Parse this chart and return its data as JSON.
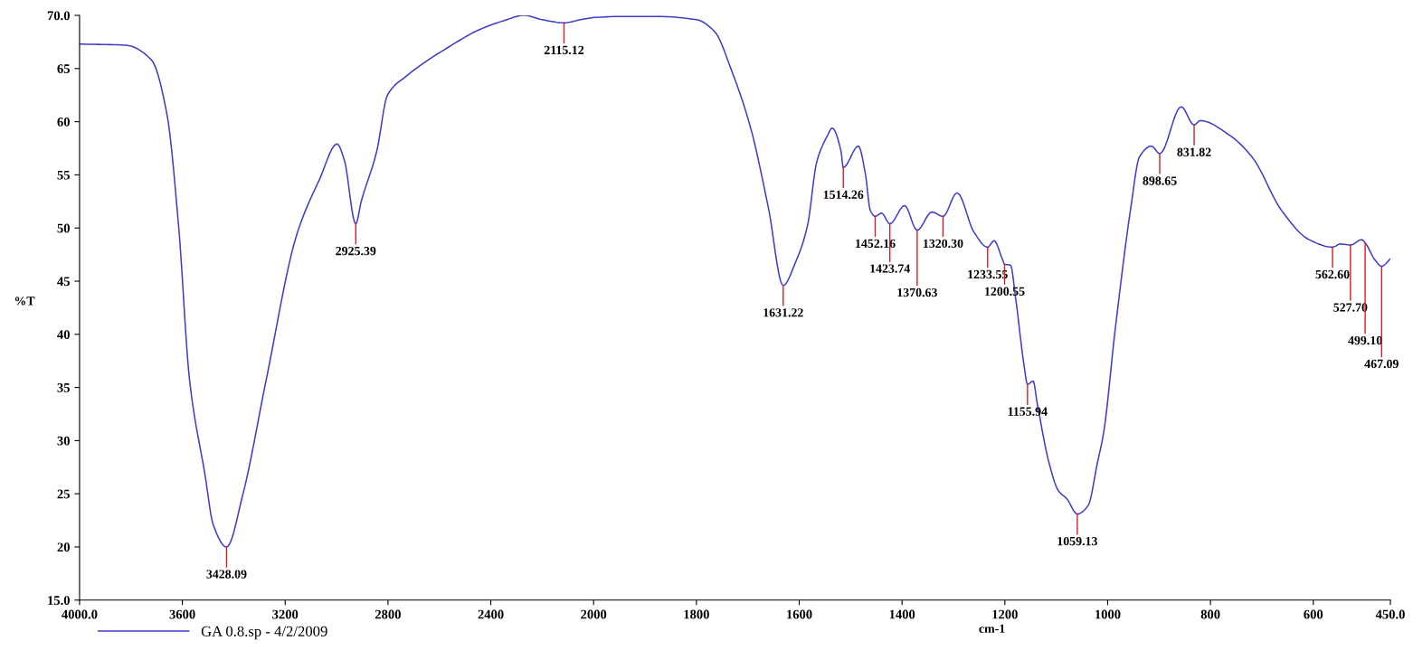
{
  "chart_data": [
    {
      "type": "line",
      "ylabel": "%T",
      "x": [
        4000,
        3822,
        3720,
        3660,
        3614,
        3572,
        3512,
        3480,
        3428.09,
        3364,
        3274,
        3156,
        3066,
        2998,
        2970,
        2925.39,
        2904,
        2844,
        2802,
        2728,
        2552,
        2450,
        2350,
        2270,
        2200,
        2115.12,
        2050,
        2000
      ],
      "series": [
        {
          "name": "GA 0.8.sp - 4/2/2009",
          "color": "#3c3cc8",
          "values": [
            67.3,
            67.2,
            65.8,
            60.7,
            50.0,
            35.7,
            26.8,
            22.1,
            20.0,
            25.0,
            35.7,
            49.3,
            54.6,
            57.9,
            56.4,
            50.4,
            52.5,
            57.2,
            62.5,
            64.3,
            67.2,
            68.6,
            69.5,
            70.0,
            69.6,
            69.3,
            69.6,
            69.8
          ]
        }
      ],
      "xlim": [
        4000,
        2000
      ],
      "xticks": [
        {
          "value": 4000,
          "label": "4000.0"
        },
        3600,
        3200,
        2800,
        2400
      ],
      "ylim": [
        15,
        70
      ],
      "yticks": [
        {
          "value": 15,
          "label": "15.0"
        },
        20,
        25,
        30,
        35,
        40,
        45,
        50,
        55,
        60,
        65,
        {
          "value": 70,
          "label": "70.0"
        }
      ],
      "grid": false,
      "legend": "bottom left",
      "annotations": [
        {
          "text": "3428.09",
          "x": 3428.09,
          "y": 20.0
        },
        {
          "text": "2925.39",
          "x": 2925.39,
          "y": 50.4
        },
        {
          "text": "2115.12",
          "x": 2115.12,
          "y": 69.3
        }
      ]
    },
    {
      "type": "line",
      "xlabel": "cm-1",
      "x": [
        2000,
        1950,
        1880,
        1800,
        1765,
        1730,
        1695,
        1660,
        1631.22,
        1607,
        1584,
        1566,
        1545,
        1536,
        1519,
        1514.26,
        1485,
        1471,
        1462,
        1452.16,
        1440,
        1423.74,
        1395,
        1370.63,
        1342,
        1320.3,
        1293,
        1260,
        1233.55,
        1221,
        1205,
        1200.55,
        1189,
        1179,
        1163,
        1155.94,
        1145,
        1137,
        1114,
        1096,
        1079,
        1059.13,
        1038,
        1020,
        1008,
        985,
        955,
        938,
        915,
        898.65,
        857,
        831.82,
        820,
        762,
        718,
        661,
        608,
        562.6,
        547,
        527.7,
        506,
        499.1,
        480,
        467.09,
        450
      ],
      "series": [
        {
          "color": "#3c3cc8",
          "values": [
            69.8,
            69.9,
            69.9,
            69.6,
            68.5,
            64.6,
            59.5,
            51.9,
            44.6,
            46.8,
            50.2,
            56.2,
            58.7,
            59.4,
            57.3,
            55.7,
            57.7,
            55.0,
            51.7,
            51.1,
            51.4,
            50.4,
            52.1,
            49.8,
            51.5,
            51.1,
            53.3,
            49.6,
            48.2,
            48.8,
            47.1,
            46.6,
            46.5,
            43.4,
            37.2,
            35.3,
            35.6,
            33.5,
            27.9,
            25.3,
            24.5,
            23.1,
            23.9,
            27.9,
            30.7,
            40.6,
            51.9,
            56.7,
            57.7,
            57.0,
            61.4,
            59.7,
            60.1,
            58.7,
            56.6,
            51.6,
            48.9,
            48.2,
            48.5,
            48.4,
            48.9,
            48.6,
            47.0,
            46.4,
            47.1
          ]
        }
      ],
      "xlim": [
        2000,
        450
      ],
      "xticks": [
        2000,
        1800,
        1600,
        1400,
        1200,
        1000,
        800,
        600,
        {
          "value": 450,
          "label": "450.0"
        }
      ],
      "ylim": [
        15,
        70
      ],
      "tick_labels": "x",
      "grid": false,
      "annotations": [
        {
          "text": "1631.22",
          "x": 1631.22,
          "y": 44.6
        },
        {
          "text": "1514.26",
          "x": 1514.26,
          "y": 55.7
        },
        {
          "text": "1452.16",
          "x": 1452.16,
          "y": 51.1
        },
        {
          "text": "1423.74",
          "x": 1423.74,
          "y": 50.4
        },
        {
          "text": "1370.63",
          "x": 1370.63,
          "y": 49.8
        },
        {
          "text": "1320.30",
          "x": 1320.3,
          "y": 51.1
        },
        {
          "text": "1233.55",
          "x": 1233.55,
          "y": 48.2
        },
        {
          "text": "1200.55",
          "x": 1200.55,
          "y": 46.6
        },
        {
          "text": "1155.94",
          "x": 1155.94,
          "y": 35.3
        },
        {
          "text": "1059.13",
          "x": 1059.13,
          "y": 23.1
        },
        {
          "text": "898.65",
          "x": 898.65,
          "y": 57.0
        },
        {
          "text": "831.82",
          "x": 831.82,
          "y": 59.7
        },
        {
          "text": "562.60",
          "x": 562.6,
          "y": 48.2
        },
        {
          "text": "527.70",
          "x": 527.7,
          "y": 48.4
        },
        {
          "text": "499.10",
          "x": 499.1,
          "y": 48.6
        },
        {
          "text": "467.09",
          "x": 467.09,
          "y": 46.4
        }
      ]
    }
  ]
}
